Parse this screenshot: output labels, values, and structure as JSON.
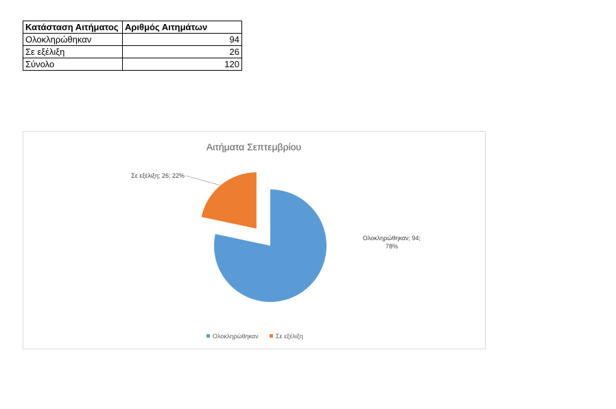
{
  "table": {
    "headers": [
      "Κατάσταση Αιτήματος",
      "Αριθμός Αιτημάτων"
    ],
    "rows": [
      {
        "label": "Ολοκληρώθηκαν",
        "value": "94"
      },
      {
        "label": "Σε εξέλιξη",
        "value": "26"
      },
      {
        "label": "Σύνολο",
        "value": "120"
      }
    ]
  },
  "chart_data": {
    "type": "pie",
    "title": "Αιτήματα Σεπτεμβρίου",
    "categories": [
      "Ολοκληρώθηκαν",
      "Σε εξέλιξη"
    ],
    "values": [
      94,
      26
    ],
    "percentages": [
      "78%",
      "22%"
    ],
    "colors": [
      "#5B9BD5",
      "#ED7D31"
    ],
    "data_labels": [
      "Ολοκληρώθηκαν; 94; 78%",
      "Σε εξέλιξη; 26; 22%"
    ],
    "exploded": [
      false,
      true
    ],
    "legend": "bottom"
  }
}
